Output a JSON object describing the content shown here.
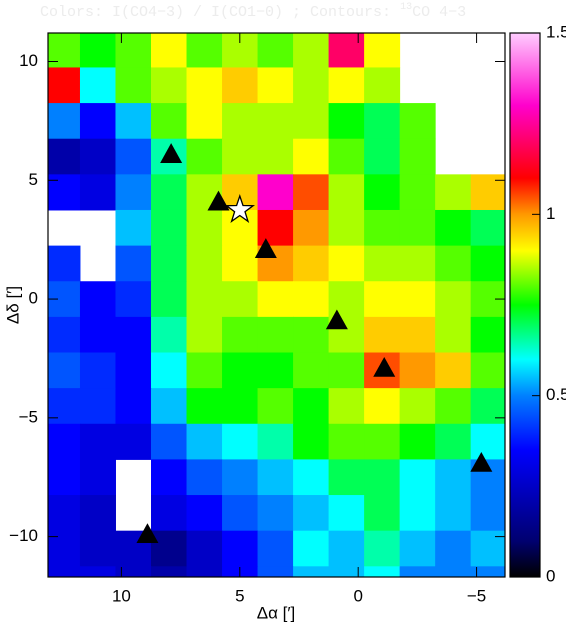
{
  "chart_data": {
    "type": "heatmap",
    "title": "Colors: I(CO4−3) / I(CO1−0) ; Contours: ",
    "title_sup": "13",
    "title_end": "CO 4−3",
    "x_label": "Δα [′]",
    "y_label": "Δδ [′]",
    "xlim": [
      13.1,
      -6.2
    ],
    "ylim": [
      -11.7,
      11.2
    ],
    "xticks": [
      10,
      5,
      0,
      {
        "value": -5,
        "label": "−5"
      }
    ],
    "yticks": [
      10,
      5,
      0,
      {
        "value": -5,
        "label": "−5"
      },
      {
        "value": -10,
        "label": "−10"
      }
    ],
    "x": [
      12.5,
      11,
      9.5,
      8,
      6.5,
      5,
      3.5,
      2,
      0.5,
      -1,
      -2.5,
      -4,
      -5.5
    ],
    "y": [
      10.5,
      9,
      7.5,
      6,
      4.5,
      3,
      1.5,
      0,
      -1.5,
      -3,
      -4.5,
      -6,
      -7.5,
      -9,
      -10.5,
      -12
    ],
    "z": [
      [
        0.8,
        0.75,
        0.8,
        0.9,
        0.8,
        0.85,
        0.8,
        0.85,
        1.2,
        0.9,
        null,
        null,
        null
      ],
      [
        1.1,
        0.6,
        0.8,
        0.85,
        0.9,
        0.95,
        0.9,
        0.85,
        0.9,
        0.85,
        null,
        null,
        null
      ],
      [
        0.5,
        0.35,
        0.55,
        0.8,
        0.9,
        0.85,
        0.85,
        0.85,
        0.75,
        0.7,
        0.8,
        null,
        null
      ],
      [
        0.2,
        0.25,
        0.45,
        0.65,
        0.8,
        0.85,
        0.85,
        0.9,
        0.8,
        0.7,
        0.8,
        null,
        null
      ],
      [
        0.35,
        0.3,
        0.5,
        0.7,
        0.85,
        0.95,
        1.3,
        1.05,
        0.85,
        0.75,
        0.8,
        0.85,
        0.95
      ],
      [
        null,
        null,
        0.55,
        0.7,
        0.85,
        0.9,
        1.1,
        1.0,
        0.85,
        0.8,
        0.8,
        0.75,
        0.7
      ],
      [
        0.4,
        null,
        0.45,
        0.7,
        0.85,
        0.9,
        1.0,
        0.95,
        0.9,
        0.85,
        0.85,
        0.8,
        0.75
      ],
      [
        0.45,
        0.35,
        0.4,
        0.7,
        0.85,
        0.85,
        0.9,
        0.9,
        0.85,
        0.9,
        0.9,
        0.85,
        0.8
      ],
      [
        0.4,
        0.35,
        0.35,
        0.65,
        0.85,
        0.8,
        0.8,
        0.8,
        0.85,
        0.95,
        0.95,
        0.85,
        0.75
      ],
      [
        0.45,
        0.4,
        0.35,
        0.6,
        0.8,
        0.75,
        0.75,
        0.8,
        0.8,
        1.05,
        1.0,
        0.95,
        0.8
      ],
      [
        0.4,
        0.4,
        0.35,
        0.55,
        0.75,
        0.75,
        0.8,
        0.75,
        0.85,
        0.9,
        0.85,
        0.8,
        0.7
      ],
      [
        0.35,
        0.3,
        0.3,
        0.45,
        0.55,
        0.6,
        0.65,
        0.75,
        0.8,
        0.8,
        0.75,
        0.7,
        0.6
      ],
      [
        0.35,
        0.3,
        null,
        0.35,
        0.45,
        0.5,
        0.55,
        0.6,
        0.7,
        0.7,
        0.6,
        0.55,
        0.5
      ],
      [
        0.3,
        0.25,
        null,
        0.3,
        0.35,
        0.45,
        0.5,
        0.55,
        0.6,
        0.7,
        0.6,
        0.55,
        0.5
      ],
      [
        0.3,
        0.25,
        0.25,
        0.15,
        0.25,
        0.35,
        0.45,
        0.6,
        0.55,
        0.65,
        0.55,
        0.5,
        0.55
      ],
      [
        0.3,
        0.3,
        0.25,
        0.2,
        0.25,
        0.35,
        0.45,
        0.55,
        0.55,
        0.6,
        0.5,
        0.5,
        0.5
      ]
    ],
    "colormap": [
      [
        0,
        "#000000"
      ],
      [
        0.1,
        "#000070"
      ],
      [
        0.35,
        "#0000ff"
      ],
      [
        0.5,
        "#0080ff"
      ],
      [
        0.6,
        "#00ffff"
      ],
      [
        0.75,
        "#00ff00"
      ],
      [
        0.9,
        "#ffff00"
      ],
      [
        1.0,
        "#ff9900"
      ],
      [
        1.1,
        "#ff0000"
      ],
      [
        1.3,
        "#ff00cc"
      ],
      [
        1.5,
        "#ffccff"
      ]
    ],
    "clim": [
      0,
      1.5
    ],
    "cticks": [
      0,
      0.5,
      1,
      1.5
    ],
    "triangles": {
      "x": [
        7.9,
        5.9,
        3.9,
        0.9,
        -1.1,
        -5.2,
        8.9
      ],
      "y": [
        6.1,
        4.1,
        2.1,
        -0.9,
        -2.9,
        -6.9,
        -9.9
      ],
      "color": "#000000"
    },
    "star": {
      "x": 5,
      "y": 3.75,
      "color": "#ffffff"
    }
  }
}
